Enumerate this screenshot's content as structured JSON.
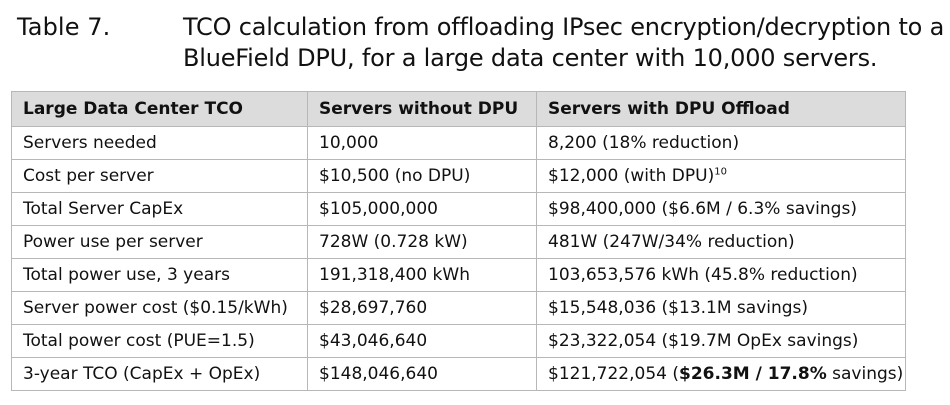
{
  "caption": {
    "label": "Table 7.",
    "title_line1": "TCO calculation from offloading IPsec encryption/decryption to a",
    "title_line2": "BlueField DPU, for a large data center with 10,000 servers."
  },
  "table": {
    "headers": [
      "Large Data Center TCO",
      "Servers without DPU",
      "Servers with DPU Offload"
    ],
    "rows": [
      {
        "label": "Servers needed",
        "without": "10,000",
        "with": "8,200 (18% reduction)"
      },
      {
        "label": "Cost per server",
        "without": "$10,500 (no DPU)",
        "with": "$12,000 (with DPU)",
        "with_sup": "10"
      },
      {
        "label": "Total Server CapEx",
        "without": "$105,000,000",
        "with": "$98,400,000 ($6.6M / 6.3% savings)"
      },
      {
        "label": "Power use per server",
        "without": "728W (0.728 kW)",
        "with": "481W (247W/34% reduction)"
      },
      {
        "label": "Total power use, 3 years",
        "without": "191,318,400 kWh",
        "with": "103,653,576 kWh (45.8% reduction)"
      },
      {
        "label": "Server power cost ($0.15/kWh)",
        "without": "$28,697,760",
        "with": "$15,548,036 ($13.1M savings)"
      },
      {
        "label": "Total power cost (PUE=1.5)",
        "without": "$43,046,640",
        "with": "$23,322,054 ($19.7M OpEx savings)"
      },
      {
        "label": "3-year TCO (CapEx + OpEx)",
        "without": "$148,046,640",
        "with_prefix": "$121,722,054 (",
        "with_bold": "$26.3M / 17.8%",
        "with_suffix": " savings)"
      }
    ]
  }
}
